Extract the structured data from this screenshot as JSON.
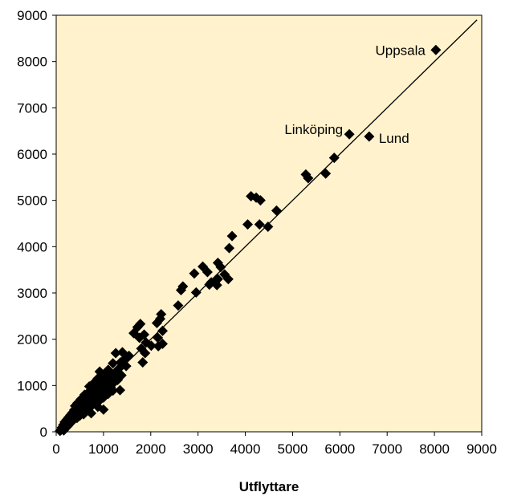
{
  "chart_data": {
    "type": "scatter",
    "title": "",
    "xlabel": "Utflyttare",
    "ylabel": "",
    "xlim": [
      0,
      9000
    ],
    "ylim": [
      0,
      9000
    ],
    "x_ticks": [
      "0",
      "1000",
      "2000",
      "3000",
      "4000",
      "5000",
      "6000",
      "7000",
      "8000",
      "9000"
    ],
    "y_ticks": [
      "0",
      "1000",
      "2000",
      "3000",
      "4000",
      "5000",
      "6000",
      "7000",
      "8000",
      "9000"
    ],
    "grid": false,
    "legend": "none",
    "colors": {
      "plot_background": "#FFF2CC",
      "marker": "#000000",
      "line": "#000000"
    },
    "reference_line": {
      "from": [
        0,
        0
      ],
      "to": [
        8900,
        8900
      ]
    },
    "annotations": [
      {
        "text": "Uppsala",
        "x": 8030,
        "y": 8250
      },
      {
        "text": "Linköping",
        "x": 6200,
        "y": 6430
      },
      {
        "text": "Lund",
        "x": 6620,
        "y": 6380
      }
    ],
    "points": [
      [
        8030,
        8250
      ],
      [
        6200,
        6430
      ],
      [
        6620,
        6380
      ],
      [
        5880,
        5920
      ],
      [
        5700,
        5580
      ],
      [
        5280,
        5560
      ],
      [
        5330,
        5480
      ],
      [
        4120,
        5090
      ],
      [
        4230,
        5060
      ],
      [
        4320,
        5000
      ],
      [
        4660,
        4780
      ],
      [
        4050,
        4480
      ],
      [
        4300,
        4480
      ],
      [
        4480,
        4430
      ],
      [
        3720,
        4230
      ],
      [
        3660,
        3970
      ],
      [
        3100,
        3570
      ],
      [
        3420,
        3650
      ],
      [
        3480,
        3560
      ],
      [
        3200,
        3450
      ],
      [
        2920,
        3420
      ],
      [
        3560,
        3400
      ],
      [
        3420,
        3300
      ],
      [
        3640,
        3300
      ],
      [
        3280,
        3230
      ],
      [
        3240,
        3180
      ],
      [
        3400,
        3170
      ],
      [
        2680,
        3140
      ],
      [
        2640,
        3060
      ],
      [
        2960,
        3010
      ],
      [
        2580,
        2730
      ],
      [
        2220,
        2540
      ],
      [
        2200,
        2440
      ],
      [
        2130,
        2350
      ],
      [
        1780,
        2330
      ],
      [
        1720,
        2260
      ],
      [
        2250,
        2180
      ],
      [
        1640,
        2130
      ],
      [
        1860,
        2100
      ],
      [
        1760,
        2030
      ],
      [
        2150,
        2030
      ],
      [
        1900,
        1930
      ],
      [
        2250,
        1900
      ],
      [
        2010,
        1860
      ],
      [
        2160,
        1850
      ],
      [
        1800,
        1800
      ],
      [
        1880,
        1700
      ],
      [
        1830,
        1500
      ],
      [
        1400,
        1720
      ],
      [
        1260,
        1700
      ],
      [
        1540,
        1640
      ],
      [
        1440,
        1560
      ],
      [
        1360,
        1500
      ],
      [
        1200,
        1480
      ],
      [
        1480,
        1420
      ],
      [
        1320,
        1360
      ],
      [
        1100,
        1340
      ],
      [
        920,
        1300
      ],
      [
        1250,
        1280
      ],
      [
        1050,
        1240
      ],
      [
        1380,
        1220
      ],
      [
        1180,
        1200
      ],
      [
        1000,
        1180
      ],
      [
        880,
        1150
      ],
      [
        1300,
        1120
      ],
      [
        1100,
        1100
      ],
      [
        950,
        1080
      ],
      [
        800,
        1060
      ],
      [
        1200,
        1040
      ],
      [
        1050,
        1010
      ],
      [
        850,
        990
      ],
      [
        700,
        980
      ],
      [
        1150,
        960
      ],
      [
        980,
        940
      ],
      [
        760,
        920
      ],
      [
        1350,
        900
      ],
      [
        1200,
        890
      ],
      [
        1050,
        880
      ],
      [
        900,
        860
      ],
      [
        680,
        850
      ],
      [
        820,
        830
      ],
      [
        1100,
        820
      ],
      [
        960,
        800
      ],
      [
        600,
        800
      ],
      [
        750,
        780
      ],
      [
        880,
        760
      ],
      [
        1000,
        740
      ],
      [
        640,
        740
      ],
      [
        780,
        720
      ],
      [
        520,
        700
      ],
      [
        700,
        680
      ],
      [
        900,
        660
      ],
      [
        580,
        650
      ],
      [
        820,
        640
      ],
      [
        450,
        620
      ],
      [
        650,
        610
      ],
      [
        750,
        590
      ],
      [
        540,
        580
      ],
      [
        400,
        560
      ],
      [
        620,
        550
      ],
      [
        880,
        540
      ],
      [
        480,
        520
      ],
      [
        700,
        510
      ],
      [
        560,
        490
      ],
      [
        1000,
        480
      ],
      [
        380,
        470
      ],
      [
        620,
        460
      ],
      [
        460,
        440
      ],
      [
        520,
        420
      ],
      [
        340,
        410
      ],
      [
        740,
        400
      ],
      [
        420,
        390
      ],
      [
        580,
        380
      ],
      [
        300,
        360
      ],
      [
        500,
        350
      ],
      [
        380,
        330
      ],
      [
        260,
        310
      ],
      [
        440,
        300
      ],
      [
        320,
        290
      ],
      [
        220,
        260
      ],
      [
        360,
        250
      ],
      [
        280,
        230
      ],
      [
        180,
        210
      ],
      [
        300,
        190
      ],
      [
        220,
        170
      ],
      [
        150,
        150
      ],
      [
        250,
        130
      ],
      [
        180,
        110
      ],
      [
        120,
        90
      ],
      [
        200,
        80
      ],
      [
        140,
        60
      ],
      [
        100,
        40
      ],
      [
        160,
        30
      ],
      [
        80,
        20
      ]
    ]
  }
}
